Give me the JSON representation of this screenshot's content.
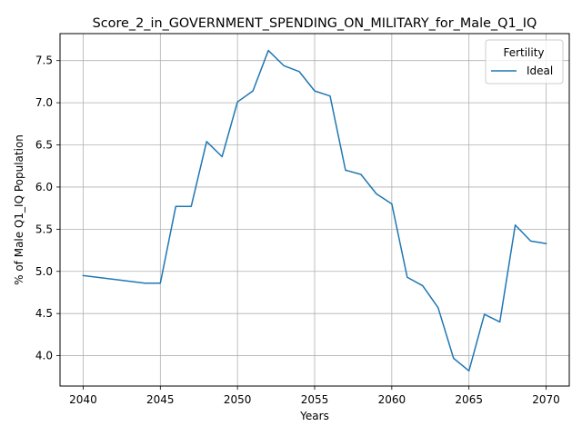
{
  "chart_data": {
    "type": "line",
    "title": "Score_2_in_GOVERNMENT_SPENDING_ON_MILITARY_for_Male_Q1_IQ",
    "xlabel": "Years",
    "ylabel": "% of Male Q1_IQ Population",
    "xlim": [
      2038.5,
      2071.5
    ],
    "ylim": [
      3.64,
      7.82
    ],
    "xticks": [
      2040,
      2045,
      2050,
      2055,
      2060,
      2065,
      2070
    ],
    "yticks": [
      4.0,
      4.5,
      5.0,
      5.5,
      6.0,
      6.5,
      7.0,
      7.5
    ],
    "xtick_labels": [
      "2040",
      "2045",
      "2050",
      "2055",
      "2060",
      "2065",
      "2070"
    ],
    "ytick_labels": [
      "4.0",
      "4.5",
      "5.0",
      "5.5",
      "6.0",
      "6.5",
      "7.0",
      "7.5"
    ],
    "grid": true,
    "legend": {
      "title": "Fertility",
      "position": "top-right"
    },
    "series": [
      {
        "name": "Ideal",
        "color": "#1f77b4",
        "x": [
          2040,
          2044,
          2045,
          2046,
          2047,
          2048,
          2049,
          2050,
          2051,
          2052,
          2053,
          2054,
          2055,
          2056,
          2057,
          2058,
          2059,
          2060,
          2061,
          2062,
          2063,
          2064,
          2065,
          2066,
          2067,
          2068,
          2069,
          2070
        ],
        "y": [
          4.95,
          4.86,
          4.86,
          5.77,
          5.77,
          6.54,
          6.36,
          7.01,
          7.14,
          7.62,
          7.44,
          7.37,
          7.14,
          7.08,
          6.2,
          6.15,
          5.92,
          5.8,
          4.93,
          4.83,
          4.57,
          3.97,
          3.82,
          4.49,
          4.4,
          5.55,
          5.36,
          5.33
        ]
      }
    ]
  }
}
